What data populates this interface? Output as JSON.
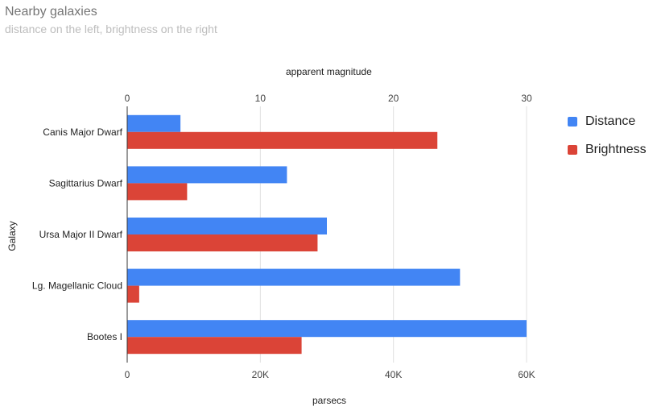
{
  "chart_data": {
    "type": "bar",
    "orientation": "horizontal",
    "title": "Nearby galaxies",
    "subtitle": "distance on the left, brightness on the right",
    "ylabel": "Galaxy",
    "xlabel_bottom": "parsecs",
    "xlabel_top": "apparent magnitude",
    "categories": [
      "Canis Major Dwarf",
      "Sagittarius Dwarf",
      "Ursa Major II Dwarf",
      "Lg. Magellanic Cloud",
      "Bootes I"
    ],
    "series": [
      {
        "name": "Distance",
        "axis": "bottom",
        "color": "#4285f4",
        "values": [
          8000,
          24000,
          30000,
          50000,
          60000
        ]
      },
      {
        "name": "Brightness",
        "axis": "top",
        "color": "#db4437",
        "values": [
          23.3,
          4.5,
          14.3,
          0.9,
          13.1
        ]
      }
    ],
    "bottom_axis": {
      "range": [
        0,
        60000
      ],
      "ticks": [
        0,
        20000,
        40000,
        60000
      ],
      "tick_labels": [
        "0",
        "20K",
        "40K",
        "60K"
      ]
    },
    "top_axis": {
      "range": [
        0,
        30
      ],
      "ticks": [
        0,
        10,
        20,
        30
      ],
      "tick_labels": [
        "0",
        "10",
        "20",
        "30"
      ]
    },
    "grid": true,
    "legend_position": "right"
  }
}
